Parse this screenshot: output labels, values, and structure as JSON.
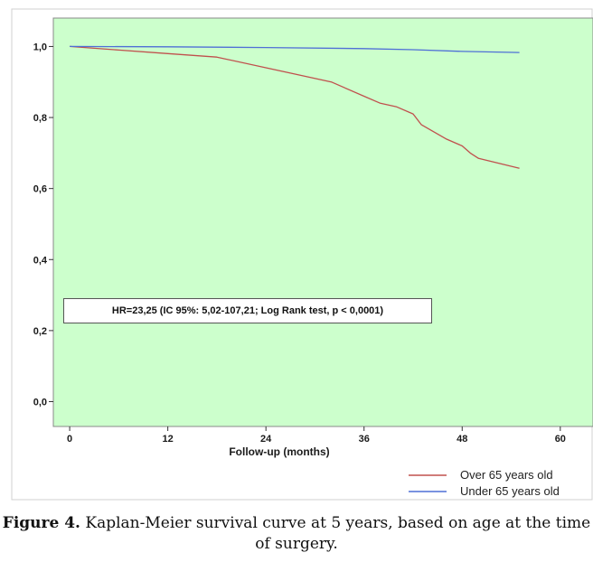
{
  "chart_data": {
    "type": "line",
    "subtype": "kaplan-meier step survival curve",
    "xlabel": "Follow-up (months)",
    "ylabel": "",
    "xlim": [
      -2,
      64
    ],
    "ylim": [
      -0.07,
      1.08
    ],
    "xticks": [
      0,
      12,
      24,
      36,
      48,
      60
    ],
    "xtick_labels": [
      "0",
      "12",
      "24",
      "36",
      "48",
      "60"
    ],
    "yticks": [
      0.0,
      0.2,
      0.4,
      0.6,
      0.8,
      1.0
    ],
    "ytick_labels": [
      "0,0",
      "0,2",
      "0,4",
      "0,6",
      "0,8",
      "1,0"
    ],
    "plot_background": "#ccffcc",
    "grid": false,
    "legend_position": "bottom-right, below plot",
    "annotation": "HR=23,25 (IC 95%: 5,02-107,21; Log Rank test, p < 0,0001)",
    "series": [
      {
        "name": "Over 65 years old",
        "color": "#c0504d",
        "x": [
          0,
          6,
          12,
          18,
          24,
          28,
          32,
          36,
          38,
          40,
          42,
          43,
          46,
          48,
          49,
          50,
          55
        ],
        "y": [
          1.0,
          0.99,
          0.98,
          0.97,
          0.94,
          0.92,
          0.9,
          0.86,
          0.84,
          0.83,
          0.81,
          0.78,
          0.74,
          0.72,
          0.7,
          0.685,
          0.657
        ]
      },
      {
        "name": "Under 65 years old",
        "color": "#4f6fd6",
        "x": [
          0,
          12,
          24,
          36,
          42,
          48,
          55
        ],
        "y": [
          1.0,
          0.999,
          0.997,
          0.994,
          0.991,
          0.986,
          0.983
        ]
      }
    ]
  },
  "caption": {
    "label": "Figure 4.",
    "text": " Kaplan-Meier survival curve at 5 years, based on age at the time of surgery."
  }
}
